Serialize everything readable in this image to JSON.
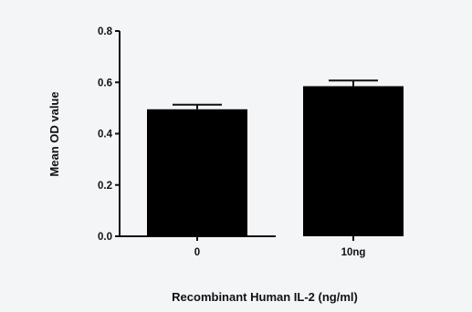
{
  "chart_data": {
    "type": "bar",
    "categories": [
      "0",
      "10ng"
    ],
    "values": [
      0.495,
      0.585
    ],
    "errors": [
      0.018,
      0.022
    ],
    "title": "",
    "xlabel": "Recombinant Human IL-2 (ng/ml)",
    "ylabel": "Mean OD value",
    "ylim": [
      0,
      0.8
    ],
    "yticks": [
      "0.0",
      "0.2",
      "0.4",
      "0.6",
      "0.8"
    ],
    "grid": false,
    "bar_color": "#000000",
    "background": "#f4f5f6"
  }
}
